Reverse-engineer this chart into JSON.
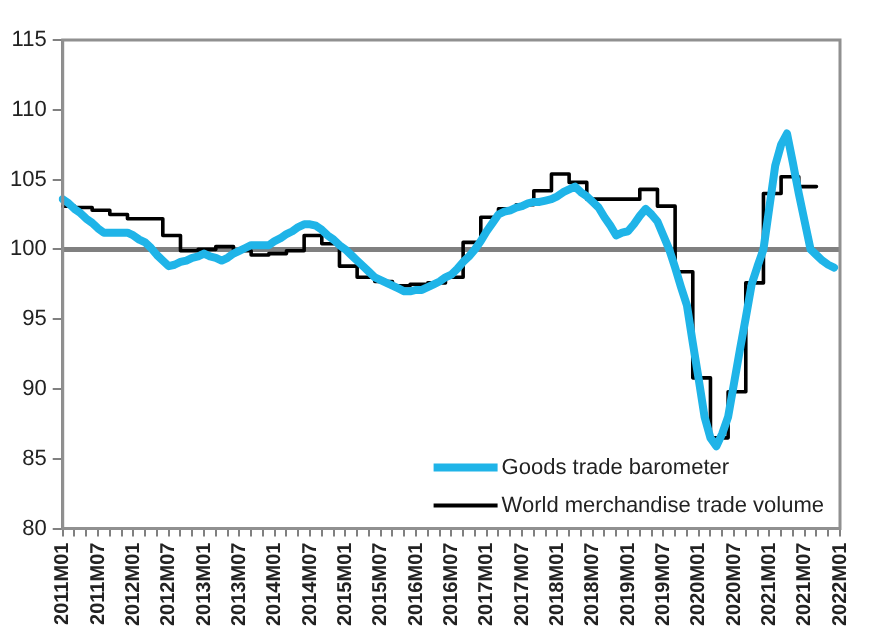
{
  "chart_data": {
    "type": "line",
    "categories": [
      "2011M01",
      null,
      null,
      null,
      null,
      null,
      "2011M07",
      null,
      null,
      null,
      null,
      null,
      "2012M01",
      null,
      null,
      null,
      null,
      null,
      "2012M07",
      null,
      null,
      null,
      null,
      null,
      "2013M01",
      null,
      null,
      null,
      null,
      null,
      "2013M07",
      null,
      null,
      null,
      null,
      null,
      "2014M01",
      null,
      null,
      null,
      null,
      null,
      "2014M07",
      null,
      null,
      null,
      null,
      null,
      "2015M01",
      null,
      null,
      null,
      null,
      null,
      "2015M07",
      null,
      null,
      null,
      null,
      null,
      "2016M01",
      null,
      null,
      null,
      null,
      null,
      "2016M07",
      null,
      null,
      null,
      null,
      null,
      "2017M01",
      null,
      null,
      null,
      null,
      null,
      "2017M07",
      null,
      null,
      null,
      null,
      null,
      "2018M01",
      null,
      null,
      null,
      null,
      null,
      "2018M07",
      null,
      null,
      null,
      null,
      null,
      "2019M01",
      null,
      null,
      null,
      null,
      null,
      "2019M07",
      null,
      null,
      null,
      null,
      null,
      "2020M01",
      null,
      null,
      null,
      null,
      null,
      "2020M07",
      null,
      null,
      null,
      null,
      null,
      "2021M01",
      null,
      null,
      null,
      null,
      null,
      "2021M07",
      null,
      null,
      null,
      null,
      null,
      "2022M01"
    ],
    "series": [
      {
        "name": "Goods trade barometer",
        "color": "#1fb4e8",
        "values": [
          103.6,
          103.3,
          102.9,
          102.6,
          102.2,
          101.9,
          101.5,
          101.2,
          101.2,
          101.2,
          101.2,
          101.2,
          101.0,
          100.7,
          100.5,
          100.1,
          99.6,
          99.2,
          98.8,
          98.9,
          99.1,
          99.2,
          99.4,
          99.5,
          99.7,
          99.5,
          99.4,
          99.2,
          99.4,
          99.7,
          99.9,
          100.1,
          100.3,
          100.3,
          100.3,
          100.3,
          100.6,
          100.8,
          101.1,
          101.3,
          101.6,
          101.8,
          101.8,
          101.7,
          101.4,
          101.0,
          100.7,
          100.3,
          100.0,
          99.6,
          99.2,
          98.8,
          98.4,
          98.0,
          97.8,
          97.6,
          97.4,
          97.2,
          97.0,
          97.0,
          97.1,
          97.1,
          97.3,
          97.5,
          97.7,
          98.0,
          98.2,
          98.6,
          99.1,
          99.5,
          100.0,
          100.6,
          101.3,
          101.9,
          102.5,
          102.7,
          102.8,
          103.0,
          103.1,
          103.3,
          103.4,
          103.4,
          103.5,
          103.6,
          103.8,
          104.1,
          104.3,
          104.5,
          104.1,
          103.8,
          103.4,
          103.0,
          102.3,
          101.7,
          101.0,
          101.2,
          101.3,
          101.8,
          102.4,
          102.9,
          102.5,
          102.0,
          101.0,
          100.0,
          98.7,
          97.3,
          96.0,
          93.3,
          90.7,
          88.0,
          86.5,
          85.9,
          86.8,
          88.0,
          90.4,
          92.8,
          95.1,
          97.5,
          98.8,
          100.0,
          103.0,
          106.0,
          107.5,
          108.3,
          106.2,
          104.0,
          102.0,
          100.0,
          99.6,
          99.2,
          98.9,
          98.7,
          null
        ]
      },
      {
        "name": "World merchandise trade volume",
        "color": "#000000",
        "type": "step",
        "values": [
          103.1,
          103.1,
          103.1,
          103.0,
          103.0,
          103.0,
          102.8,
          102.8,
          102.8,
          102.5,
          102.5,
          102.5,
          102.2,
          102.2,
          102.2,
          102.2,
          102.2,
          102.2,
          101.0,
          101.0,
          101.0,
          99.9,
          99.9,
          99.9,
          100.0,
          100.0,
          100.0,
          100.2,
          100.2,
          100.2,
          99.9,
          99.9,
          99.9,
          99.6,
          99.6,
          99.6,
          99.7,
          99.7,
          99.7,
          99.9,
          99.9,
          99.9,
          101.0,
          101.0,
          101.0,
          100.4,
          100.4,
          100.4,
          98.8,
          98.8,
          98.8,
          98.0,
          98.0,
          98.0,
          97.7,
          97.7,
          97.7,
          97.4,
          97.4,
          97.4,
          97.5,
          97.5,
          97.5,
          97.6,
          97.6,
          97.6,
          98.0,
          98.0,
          98.0,
          100.5,
          100.5,
          100.5,
          102.3,
          102.3,
          102.3,
          102.9,
          102.9,
          102.9,
          103.2,
          103.2,
          103.2,
          104.2,
          104.2,
          104.2,
          105.4,
          105.4,
          105.4,
          104.8,
          104.8,
          104.8,
          103.6,
          103.6,
          103.6,
          103.6,
          103.6,
          103.6,
          103.6,
          103.6,
          103.6,
          104.3,
          104.3,
          104.3,
          103.1,
          103.1,
          103.1,
          98.4,
          98.4,
          98.4,
          90.8,
          90.8,
          90.8,
          86.5,
          86.5,
          86.5,
          89.8,
          89.8,
          89.8,
          97.6,
          97.6,
          97.6,
          104.0,
          104.0,
          104.0,
          105.2,
          105.2,
          105.2,
          104.5,
          104.5,
          104.5,
          null,
          null,
          null,
          null
        ]
      }
    ],
    "ylim": [
      80,
      115
    ],
    "yticks": [
      80,
      85,
      90,
      95,
      100,
      105,
      110,
      115
    ],
    "ref_lines": [
      {
        "axis": "y",
        "value": 100,
        "color": "#808080"
      }
    ],
    "grid": false,
    "legend": "bottom right",
    "marker": "none",
    "line_style": "solid"
  }
}
